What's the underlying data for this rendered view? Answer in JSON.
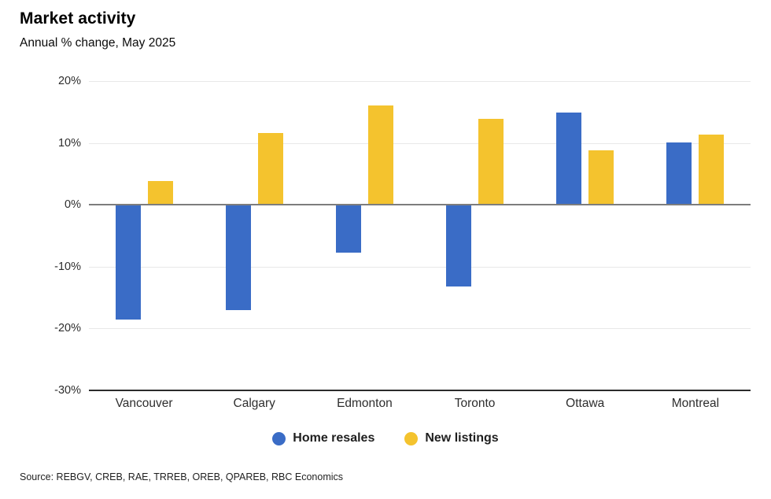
{
  "header": {
    "title": "Market activity",
    "subtitle": "Annual % change, May 2025"
  },
  "footer": {
    "source": "Source: REBGV, CREB, RAE, TRREB, OREB, QPAREB, RBC Economics"
  },
  "colors": {
    "home_resales": "#3a6cc6",
    "new_listings": "#f4c32e",
    "gridline": "#e8e8e8",
    "zero_line": "#7d7d7d",
    "bottom_axis": "#2b2b2b"
  },
  "chart_data": {
    "type": "bar",
    "title": "Market activity",
    "subtitle": "Annual % change, May 2025",
    "categories": [
      "Vancouver",
      "Calgary",
      "Edmonton",
      "Toronto",
      "Ottawa",
      "Montreal"
    ],
    "series": [
      {
        "name": "Home resales",
        "color": "#3a6cc6",
        "values": [
          -18.5,
          -17.0,
          -7.8,
          -13.2,
          14.9,
          10.1
        ]
      },
      {
        "name": "New listings",
        "color": "#f4c32e",
        "values": [
          3.9,
          11.6,
          16.1,
          13.9,
          8.8,
          11.3
        ]
      }
    ],
    "ylim": [
      -30,
      20
    ],
    "y_ticks": [
      {
        "label": "20%",
        "value": 20
      },
      {
        "label": "10%",
        "value": 10
      },
      {
        "label": "0%",
        "value": 0
      },
      {
        "label": "-10%",
        "value": -10
      },
      {
        "label": "-20%",
        "value": -20
      },
      {
        "label": "-30%",
        "value": -30
      }
    ],
    "grid": true,
    "legend_position": "bottom",
    "unit": "%"
  }
}
